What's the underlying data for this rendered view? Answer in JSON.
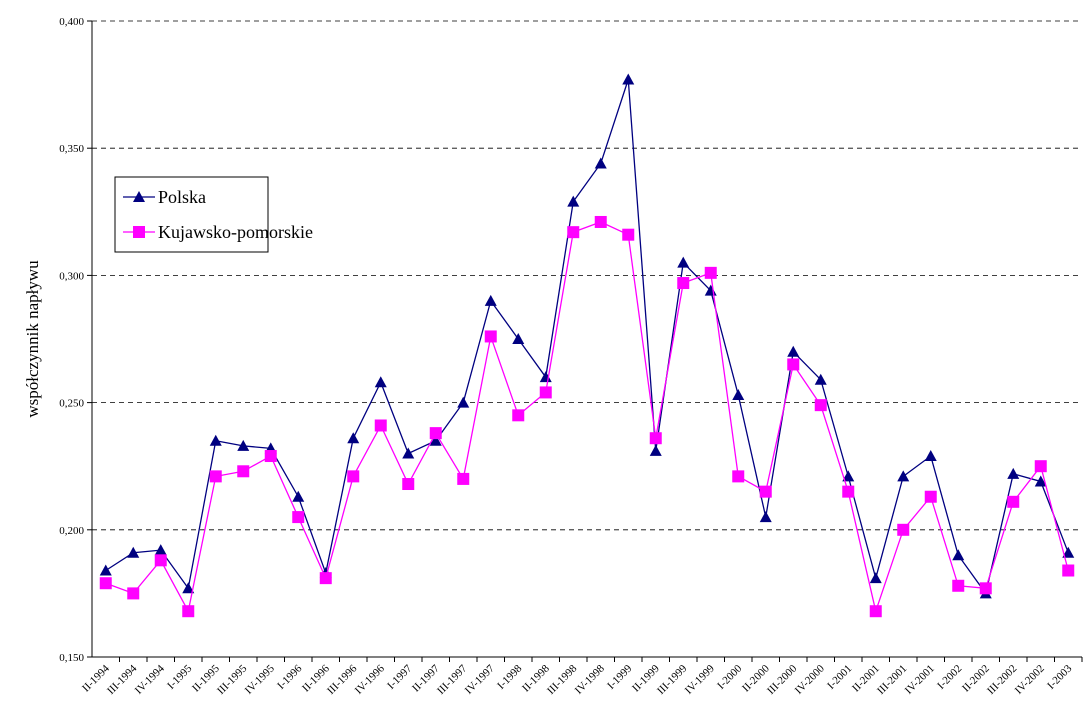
{
  "chart_data": {
    "type": "line",
    "y_label": "współczynnik napływu",
    "categories": [
      "II-1994",
      "III-1994",
      "IV-1994",
      "I-1995",
      "II-1995",
      "III-1995",
      "IV-1995",
      "I-1996",
      "II-1996",
      "III-1996",
      "IV-1996",
      "I-1997",
      "II-1997",
      "III-1997",
      "IV-1997",
      "I-1998",
      "II-1998",
      "III-1998",
      "IV-1998",
      "I-1999",
      "II-1999",
      "III-1999",
      "IV-1999",
      "I-2000",
      "II-2000",
      "III-2000",
      "IV-2000",
      "I-2001",
      "II-2001",
      "III-2001",
      "IV-2001",
      "I-2002",
      "II-2002",
      "III-2002",
      "IV-2002",
      "I-2003"
    ],
    "series": [
      {
        "name": "Polska",
        "color": "#000080",
        "marker": "triangle",
        "values": [
          0.184,
          0.191,
          0.192,
          0.177,
          0.235,
          0.233,
          0.232,
          0.213,
          0.183,
          0.236,
          0.258,
          0.23,
          0.235,
          0.25,
          0.29,
          0.275,
          0.26,
          0.329,
          0.344,
          0.377,
          0.231,
          0.305,
          0.294,
          0.253,
          0.205,
          0.27,
          0.259,
          0.221,
          0.181,
          0.221,
          0.229,
          0.19,
          0.175,
          0.222,
          0.219,
          0.191
        ]
      },
      {
        "name": "Kujawsko-pomorskie",
        "color": "#ff00ff",
        "marker": "square",
        "values": [
          0.179,
          0.175,
          0.188,
          0.168,
          0.221,
          0.223,
          0.229,
          0.205,
          0.181,
          0.221,
          0.241,
          0.218,
          0.238,
          0.22,
          0.276,
          0.245,
          0.254,
          0.317,
          0.321,
          0.316,
          0.236,
          0.297,
          0.301,
          0.221,
          0.215,
          0.265,
          0.249,
          0.215,
          0.168,
          0.2,
          0.213,
          0.178,
          0.177,
          0.211,
          0.225,
          0.184
        ]
      }
    ],
    "ylim": [
      0.15,
      0.4
    ],
    "yticks": [
      {
        "value": 0.15,
        "label": "0,150"
      },
      {
        "value": 0.2,
        "label": "0,200"
      },
      {
        "value": 0.25,
        "label": "0,250"
      },
      {
        "value": 0.3,
        "label": "0,300"
      },
      {
        "value": 0.35,
        "label": "0,350"
      },
      {
        "value": 0.4,
        "label": "0,400"
      }
    ],
    "grid": true,
    "legend": "upper left"
  }
}
